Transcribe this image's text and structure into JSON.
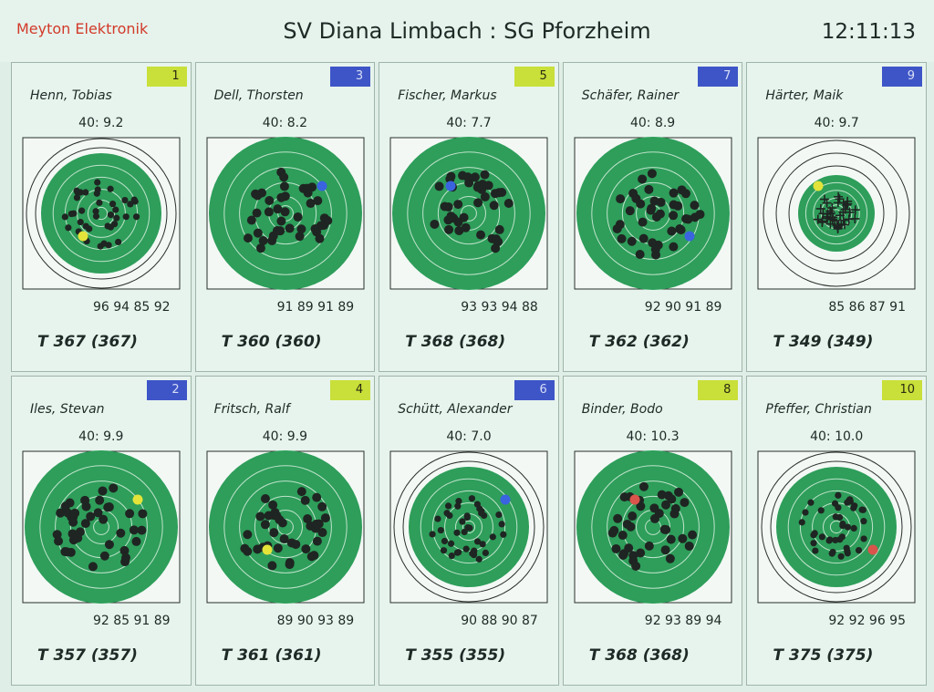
{
  "header": {
    "brand": "Meyton Elektronik",
    "title": "SV Diana Limbach : SG Pforzheim",
    "clock": "12:11:13"
  },
  "colors": {
    "target_green": "#2e9e5a",
    "target_light": "#e7f4ed",
    "badge_yellow": "#c9df3a",
    "badge_blue": "#3e55c7",
    "shot_dark": "#1f2522"
  },
  "shooters": [
    {
      "number": "1",
      "badge": "yellow",
      "name": "Henn, Tobias",
      "score40": "40:   9.2",
      "series": "96 94 85 92",
      "total": "T 367 (367)",
      "marker": "yellow",
      "target_style": "small-rings"
    },
    {
      "number": "3",
      "badge": "blue",
      "name": "Dell, Thorsten",
      "score40": "40:   8.2",
      "series": "91 89 91 89",
      "total": "T 360 (360)",
      "marker": "blue",
      "target_style": "full"
    },
    {
      "number": "5",
      "badge": "yellow",
      "name": "Fischer, Markus",
      "score40": "40:   7.7",
      "series": "93 93 94 88",
      "total": "T 368 (368)",
      "marker": "blue",
      "target_style": "full"
    },
    {
      "number": "7",
      "badge": "blue",
      "name": "Schäfer, Rainer",
      "score40": "40:   8.9",
      "series": "92 90 91 89",
      "total": "T 362 (362)",
      "marker": "blue",
      "target_style": "full"
    },
    {
      "number": "9",
      "badge": "blue",
      "name": "Härter, Maik",
      "score40": "40:   9.7",
      "series": "85 86 87 91",
      "total": "T 349 (349)",
      "marker": "yellow",
      "target_style": "crosses"
    },
    {
      "number": "2",
      "badge": "blue",
      "name": "Iles, Stevan",
      "score40": "40:   9.9",
      "series": "92 85 91 89",
      "total": "T 357 (357)",
      "marker": "yellow",
      "target_style": "full"
    },
    {
      "number": "4",
      "badge": "yellow",
      "name": "Fritsch, Ralf",
      "score40": "40:   9.9",
      "series": "89 90 93 89",
      "total": "T 361 (361)",
      "marker": "yellow",
      "target_style": "full"
    },
    {
      "number": "6",
      "badge": "blue",
      "name": "Schütt, Alexander",
      "score40": "40:   7.0",
      "series": "90 88 90 87",
      "total": "T 355 (355)",
      "marker": "blue",
      "target_style": "small-rings"
    },
    {
      "number": "8",
      "badge": "yellow",
      "name": "Binder, Bodo",
      "score40": "40:  10.3",
      "series": "92 93 89 94",
      "total": "T 368 (368)",
      "marker": "red",
      "target_style": "full"
    },
    {
      "number": "10",
      "badge": "yellow",
      "name": "Pfeffer, Christian",
      "score40": "40:  10.0",
      "series": "92 92 96 95",
      "total": "T 375 (375)",
      "marker": "red",
      "target_style": "small-rings"
    }
  ]
}
